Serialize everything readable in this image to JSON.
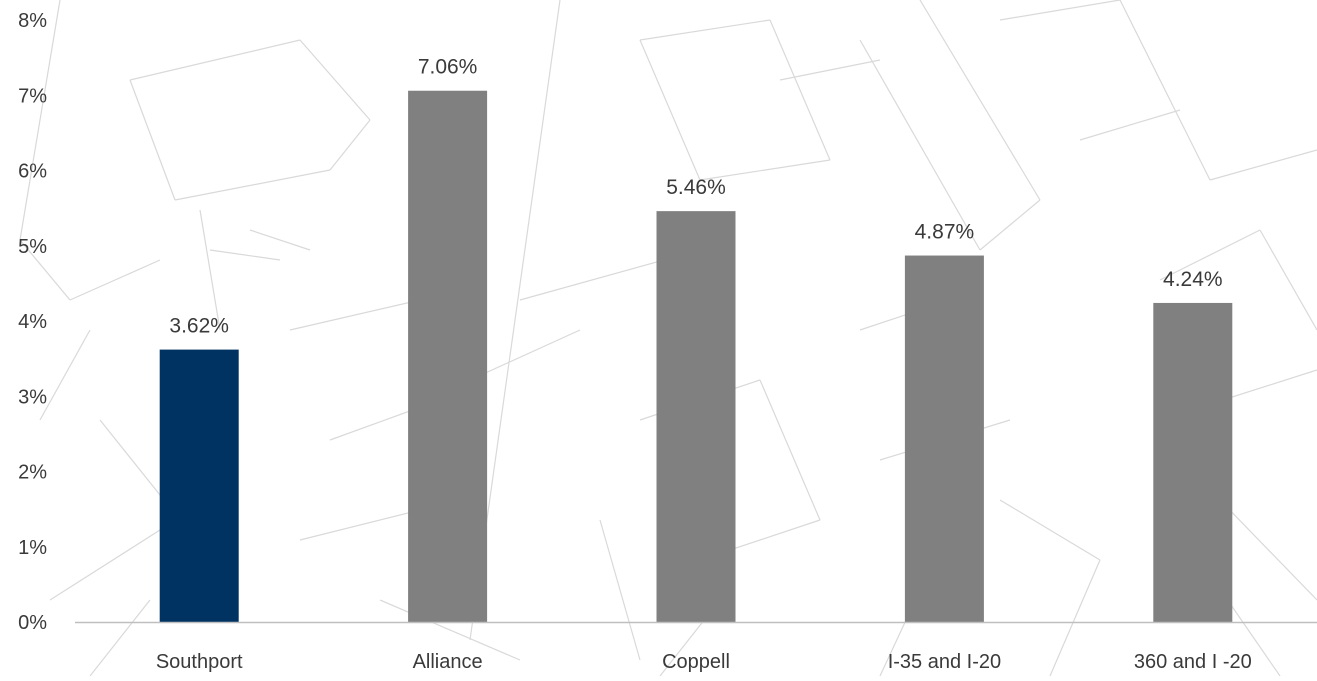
{
  "chart_data": {
    "type": "bar",
    "categories": [
      "Southport",
      "Alliance",
      "Coppell",
      "I-35 and I-20",
      "360 and I -20"
    ],
    "values": [
      3.62,
      7.06,
      5.46,
      4.87,
      4.24
    ],
    "data_labels": [
      "3.62%",
      "7.06%",
      "5.46%",
      "4.87%",
      "4.24%"
    ],
    "yticks": [
      "0%",
      "1%",
      "2%",
      "3%",
      "4%",
      "5%",
      "6%",
      "7%",
      "8%"
    ],
    "ylim": [
      0,
      8
    ],
    "title": "",
    "xlabel": "",
    "ylabel": "",
    "grid": false,
    "legend": "none",
    "highlight_index": 0
  },
  "colors": {
    "highlight_bar": "#003262",
    "default_bar": "#808080",
    "text": "#3a3a3a",
    "axis": "#bfbfbf",
    "background_lines": "#d9d9d9"
  }
}
